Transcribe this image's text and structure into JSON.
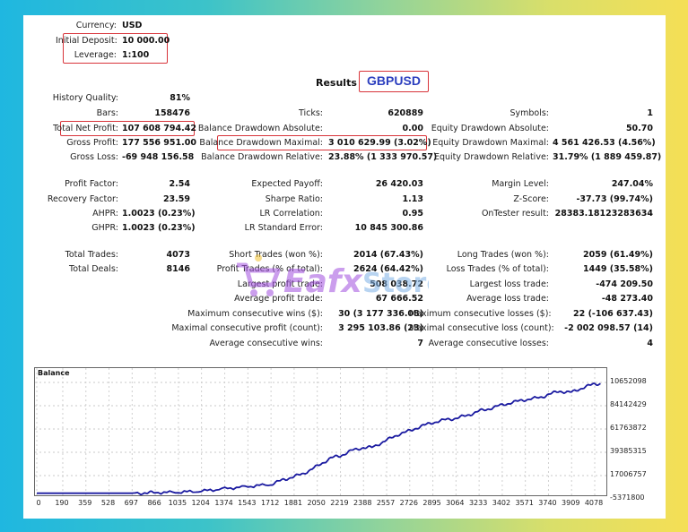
{
  "header": {
    "currency": {
      "label": "Currency:",
      "value": "USD"
    },
    "initial_deposit": {
      "label": "Initial Deposit:",
      "value": "10 000.00"
    },
    "leverage": {
      "label": "Leverage:",
      "value": "1:100"
    }
  },
  "results": {
    "label": "Results",
    "symbol": "GBPUSD"
  },
  "col1": {
    "history_quality": {
      "label": "History Quality:",
      "value": "81%"
    },
    "bars": {
      "label": "Bars:",
      "value": "158476"
    },
    "total_net_profit": {
      "label": "Total Net Profit:",
      "value": "107 608 794.42"
    },
    "gross_profit": {
      "label": "Gross Profit:",
      "value": "177 556 951.00"
    },
    "gross_loss": {
      "label": "Gross Loss:",
      "value": "-69 948 156.58"
    },
    "profit_factor": {
      "label": "Profit Factor:",
      "value": "2.54"
    },
    "recovery_factor": {
      "label": "Recovery Factor:",
      "value": "23.59"
    },
    "ahpr": {
      "label": "AHPR:",
      "value": "1.0023 (0.23%)"
    },
    "ghpr": {
      "label": "GHPR:",
      "value": "1.0023 (0.23%)"
    },
    "total_trades": {
      "label": "Total Trades:",
      "value": "4073"
    },
    "total_deals": {
      "label": "Total Deals:",
      "value": "8146"
    }
  },
  "col2": {
    "ticks": {
      "label": "Ticks:",
      "value": "620889"
    },
    "balance_dd_abs": {
      "label": "Balance Drawdown Absolute:",
      "value": "0.00"
    },
    "balance_dd_max": {
      "label": "Balance Drawdown Maximal:",
      "value": "3 010 629.99 (3.02%)"
    },
    "balance_dd_rel": {
      "label": "Balance Drawdown Relative:",
      "value": "23.88% (1 333 970.57)"
    },
    "expected_payoff": {
      "label": "Expected Payoff:",
      "value": "26 420.03"
    },
    "sharpe_ratio": {
      "label": "Sharpe Ratio:",
      "value": "1.13"
    },
    "lr_correlation": {
      "label": "LR Correlation:",
      "value": "0.95"
    },
    "lr_std_error": {
      "label": "LR Standard Error:",
      "value": "10 845 300.86"
    },
    "short_trades": {
      "label": "Short Trades (won %):",
      "value": "2014 (67.43%)"
    },
    "profit_trades": {
      "label": "Profit Trades (% of total):",
      "value": "2624 (64.42%)"
    },
    "largest_profit": {
      "label": "Largest profit trade:",
      "value": "508 038.72"
    },
    "average_profit": {
      "label": "Average profit trade:",
      "value": "67 666.52"
    },
    "max_consec_wins": {
      "label": "Maximum consecutive wins ($):",
      "value": "30 (3 177 336.08)"
    },
    "maximal_consec_profit": {
      "label": "Maximal consecutive profit (count):",
      "value": "3 295 103.86 (23)"
    },
    "avg_consec_wins": {
      "label": "Average consecutive wins:",
      "value": "7"
    }
  },
  "col3": {
    "symbols": {
      "label": "Symbols:",
      "value": "1"
    },
    "equity_dd_abs": {
      "label": "Equity Drawdown Absolute:",
      "value": "50.70"
    },
    "equity_dd_max": {
      "label": "Equity Drawdown Maximal:",
      "value": "4 561 426.53 (4.56%)"
    },
    "equity_dd_rel": {
      "label": "Equity Drawdown Relative:",
      "value": "31.79% (1 889 459.87)"
    },
    "margin_level": {
      "label": "Margin Level:",
      "value": "247.04%"
    },
    "z_score": {
      "label": "Z-Score:",
      "value": "-37.73 (99.74%)"
    },
    "ontester": {
      "label": "OnTester result:",
      "value": "28383.18123283634"
    },
    "long_trades": {
      "label": "Long Trades (won %):",
      "value": "2059 (61.49%)"
    },
    "loss_trades": {
      "label": "Loss Trades (% of total):",
      "value": "1449 (35.58%)"
    },
    "largest_loss": {
      "label": "Largest loss trade:",
      "value": "-474 209.50"
    },
    "average_loss": {
      "label": "Average loss trade:",
      "value": "-48 273.40"
    },
    "max_consec_losses": {
      "label": "Maximum consecutive losses ($):",
      "value": "22 (-106 637.43)"
    },
    "maximal_consec_loss": {
      "label": "Maximal consecutive loss (count):",
      "value": "-2 002 098.57 (14)"
    },
    "avg_consec_losses": {
      "label": "Average consecutive losses:",
      "value": "4"
    }
  },
  "watermark": {
    "text": "Eafx Store"
  },
  "colors": {
    "highlight_box": "#d8343a",
    "symbol_text": "#2c3fbf",
    "balance_line": "#1a1aa0"
  },
  "chart_data": {
    "type": "line",
    "title": "Balance",
    "xlabel": "",
    "ylabel": "",
    "x_ticks": [
      "0",
      "190",
      "359",
      "528",
      "697",
      "866",
      "1035",
      "1204",
      "1374",
      "1543",
      "1712",
      "1881",
      "2050",
      "2219",
      "2388",
      "2557",
      "2726",
      "2895",
      "3064",
      "3233",
      "3402",
      "3571",
      "3740",
      "3909",
      "4078"
    ],
    "y_ticks": [
      "10652098",
      "84142429",
      "61763872",
      "39385315",
      "17006757",
      "-5371800"
    ],
    "ylim": [
      -5371800,
      106520986
    ],
    "grid": true,
    "series": [
      {
        "name": "Balance",
        "x": [
          0,
          190,
          359,
          528,
          697,
          800,
          866,
          1035,
          1204,
          1374,
          1543,
          1712,
          1800,
          1881,
          1950,
          2050,
          2150,
          2219,
          2300,
          2388,
          2450,
          2557,
          2650,
          2726,
          2800,
          2895,
          3000,
          3064,
          3150,
          3233,
          3300,
          3402,
          3500,
          3571,
          3680,
          3740,
          3820,
          3909,
          4000,
          4078,
          4120
        ],
        "values": [
          10000,
          10000,
          10000,
          10000,
          10000,
          300000,
          700000,
          1000000,
          2000000,
          4500000,
          6500000,
          8500000,
          13000000,
          16000000,
          19000000,
          26000000,
          34000000,
          36000000,
          41000000,
          44000000,
          44000000,
          51000000,
          57000000,
          60000000,
          64000000,
          68000000,
          71000000,
          72000000,
          75000000,
          79000000,
          81000000,
          85000000,
          88000000,
          90000000,
          92000000,
          95000000,
          98000000,
          97000000,
          102000000,
          105000000,
          105500000
        ]
      }
    ]
  }
}
